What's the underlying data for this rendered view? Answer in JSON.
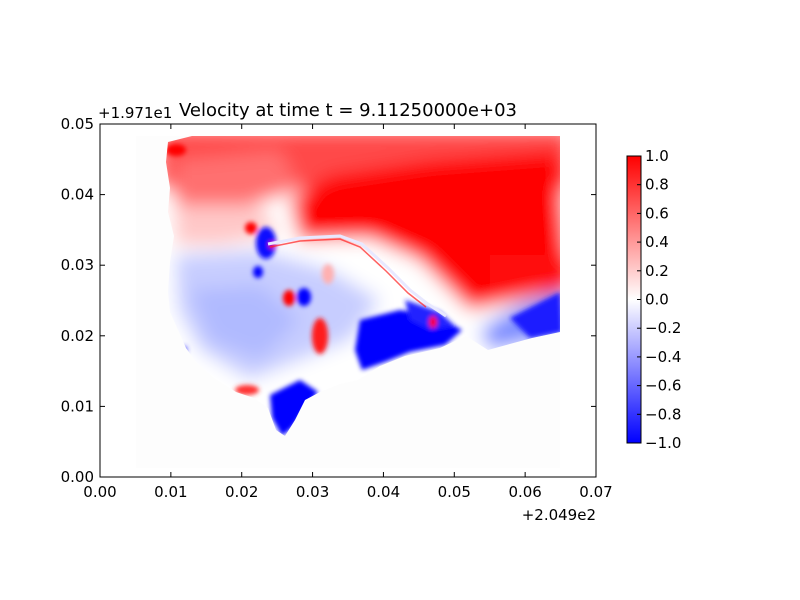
{
  "chart_data": {
    "type": "heatmap",
    "title": "Velocity at time t = 9.11250000e+03",
    "xlabel": "",
    "ylabel": "",
    "x_offset_label": "+2.049e2",
    "y_offset_label": "+1.971e1",
    "xlim": [
      0.0,
      0.07
    ],
    "ylim": [
      0.0,
      0.05
    ],
    "x_ticks": [
      "0.00",
      "0.01",
      "0.02",
      "0.03",
      "0.04",
      "0.05",
      "0.06",
      "0.07"
    ],
    "y_ticks": [
      "0.00",
      "0.01",
      "0.02",
      "0.03",
      "0.04",
      "0.05"
    ],
    "colormap": "bwr",
    "colorbar": {
      "range": [
        -1.0,
        1.0
      ],
      "ticks": [
        "1.0",
        "0.8",
        "0.6",
        "0.4",
        "0.2",
        "0.0",
        "−0.2",
        "−0.4",
        "−0.6",
        "−0.8",
        "−1.0"
      ],
      "placement": "right"
    },
    "regions": [
      {
        "x": 0.045,
        "y": 0.042,
        "value": 1.0
      },
      {
        "x": 0.02,
        "y": 0.043,
        "value": 0.55
      },
      {
        "x": 0.02,
        "y": 0.038,
        "value": 0.25
      },
      {
        "x": 0.06,
        "y": 0.03,
        "value": 0.95
      },
      {
        "x": 0.017,
        "y": 0.025,
        "value": -0.25
      },
      {
        "x": 0.034,
        "y": 0.027,
        "value": -0.15
      },
      {
        "x": 0.042,
        "y": 0.02,
        "value": -0.95
      },
      {
        "x": 0.06,
        "y": 0.022,
        "value": -0.7
      },
      {
        "x": 0.027,
        "y": 0.009,
        "value": -1.0
      },
      {
        "x": 0.024,
        "y": 0.034,
        "value": -0.9
      },
      {
        "x": 0.026,
        "y": 0.025,
        "value": 0.9
      },
      {
        "x": 0.03,
        "y": 0.02,
        "value": 0.85
      }
    ]
  },
  "colors": {
    "positive": "#ff0000",
    "neutral": "#ffffff",
    "negative": "#0000ff"
  }
}
